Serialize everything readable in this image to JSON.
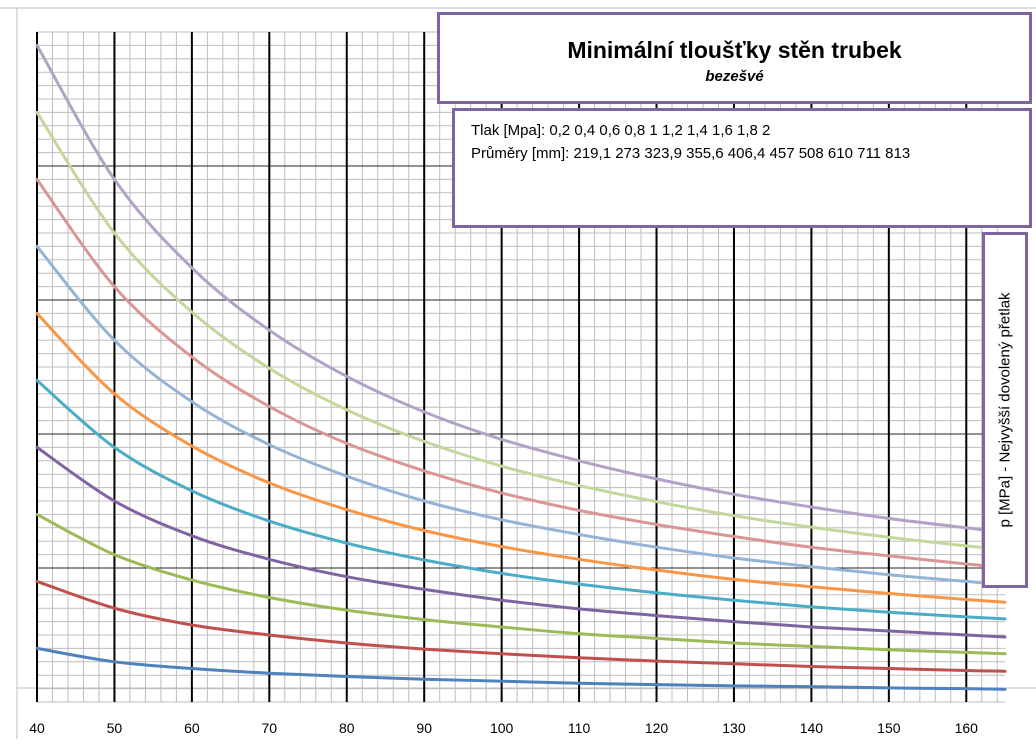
{
  "chart_data": {
    "type": "line",
    "title": "Minimální tloušťky stěn trubek",
    "subtitle": "bezešvé",
    "info_lines": [
      "Tlak [Mpa]: 0,2 0,4 0,6 0,8 1 1,2 1,4 1,6 1,8 2",
      "Průměry [mm]:  219,1 273 323,9 355,6 406,4 457 508 610 711 813"
    ],
    "ylabel": "p [MPa] - Nejvyšší dovolený přetlak",
    "xlabel": "",
    "xlim": [
      40,
      165
    ],
    "x_ticks": [
      40,
      50,
      60,
      70,
      80,
      90,
      100,
      110,
      120,
      130,
      140,
      150,
      160
    ],
    "ylim": [
      0,
      10
    ],
    "grid": true,
    "legend": "none",
    "x": [
      40,
      50,
      60,
      70,
      80,
      90,
      100,
      110,
      120,
      130,
      140,
      150,
      160,
      165
    ],
    "series": [
      {
        "color": "#4f81bd",
        "values": [
          0.8,
          0.6,
          0.5,
          0.43,
          0.38,
          0.34,
          0.31,
          0.28,
          0.26,
          0.24,
          0.23,
          0.21,
          0.2,
          0.19
        ]
      },
      {
        "color": "#c0504d",
        "values": [
          1.8,
          1.4,
          1.15,
          1.0,
          0.88,
          0.79,
          0.72,
          0.66,
          0.61,
          0.57,
          0.53,
          0.5,
          0.47,
          0.46
        ]
      },
      {
        "color": "#9bbb59",
        "values": [
          2.8,
          2.2,
          1.82,
          1.56,
          1.37,
          1.23,
          1.12,
          1.02,
          0.95,
          0.88,
          0.83,
          0.78,
          0.74,
          0.72
        ]
      },
      {
        "color": "#8064a2",
        "values": [
          3.8,
          3.0,
          2.48,
          2.13,
          1.87,
          1.68,
          1.52,
          1.39,
          1.29,
          1.2,
          1.12,
          1.06,
          1.0,
          0.97
        ]
      },
      {
        "color": "#4bacc6",
        "values": [
          4.8,
          3.8,
          3.15,
          2.7,
          2.37,
          2.12,
          1.92,
          1.76,
          1.63,
          1.52,
          1.42,
          1.34,
          1.27,
          1.24
        ]
      },
      {
        "color": "#f79646",
        "values": [
          5.8,
          4.6,
          3.82,
          3.27,
          2.87,
          2.56,
          2.32,
          2.13,
          1.97,
          1.83,
          1.72,
          1.62,
          1.53,
          1.49
        ]
      },
      {
        "color": "#95b3d7",
        "values": [
          6.8,
          5.4,
          4.48,
          3.84,
          3.37,
          3.0,
          2.72,
          2.5,
          2.31,
          2.15,
          2.02,
          1.9,
          1.8,
          1.75
        ]
      },
      {
        "color": "#d99694",
        "values": [
          7.8,
          6.2,
          5.15,
          4.41,
          3.86,
          3.45,
          3.12,
          2.86,
          2.65,
          2.47,
          2.31,
          2.18,
          2.06,
          2.01
        ]
      },
      {
        "color": "#c3d69b",
        "values": [
          8.8,
          7.0,
          5.82,
          4.98,
          4.36,
          3.89,
          3.52,
          3.23,
          2.99,
          2.78,
          2.61,
          2.46,
          2.33,
          2.27
        ]
      },
      {
        "color": "#b3a2c7",
        "values": [
          9.8,
          7.8,
          6.48,
          5.55,
          4.86,
          4.33,
          3.92,
          3.6,
          3.33,
          3.1,
          2.91,
          2.74,
          2.6,
          2.53
        ]
      }
    ]
  }
}
